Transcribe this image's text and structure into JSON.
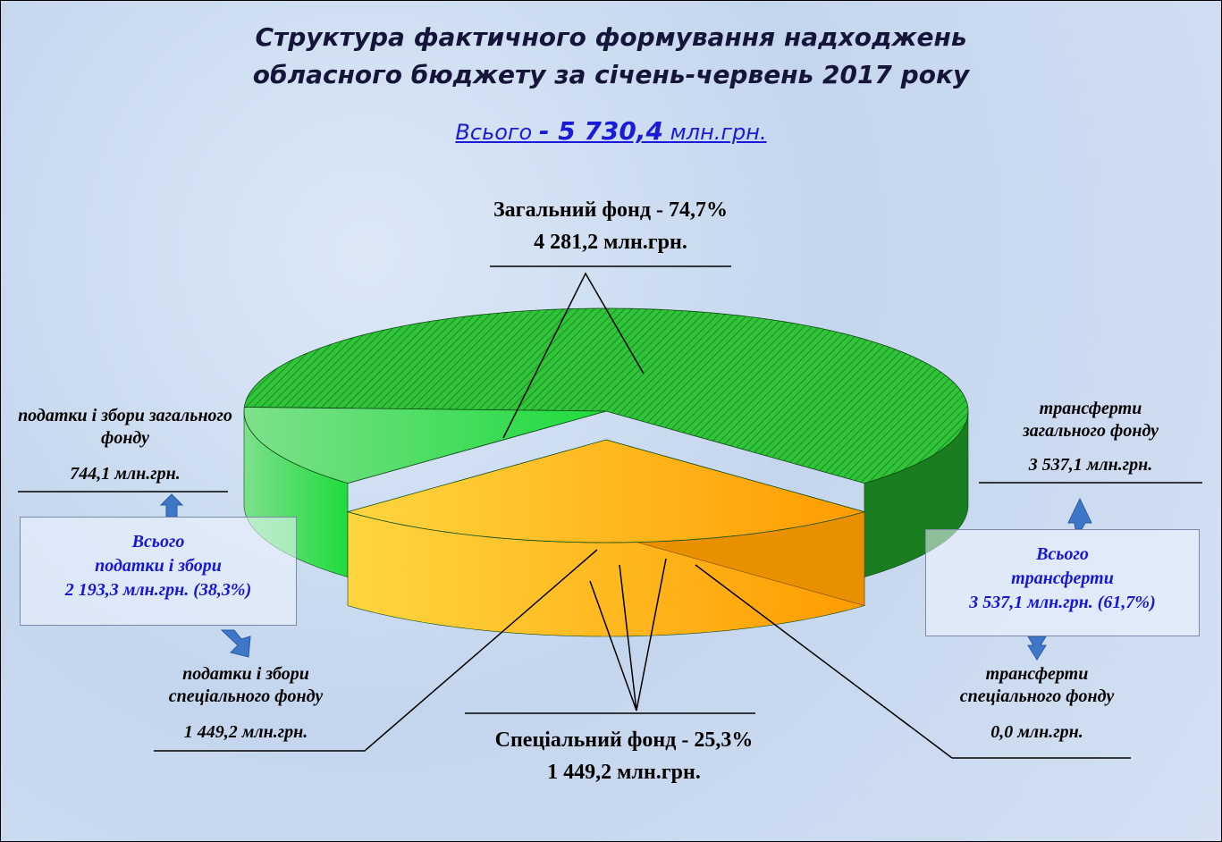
{
  "chart_data": {
    "type": "pie",
    "title": [
      "Структура фактичного формування надходжень",
      "обласного бюджету за січень-червень 2017 року"
    ],
    "total": {
      "text": "Всього",
      "value": 5730.4,
      "value_label": "- 5 730,4",
      "unit": "млн.грн."
    },
    "categories": [
      "податки і збори загального фонду",
      "трансферти загального фонду",
      "податки і збори спеціального фонду",
      "трансферти спеціального фонду"
    ],
    "values": [
      744.1,
      3537.1,
      1449.2,
      0
    ],
    "value_labels": [
      "744,1 млн.грн.",
      "3 537,1 млн.грн.",
      "1 449,2 млн.грн.",
      "0,0  млн.грн."
    ],
    "colors": [
      "#3ed85c",
      "#1f9a26",
      "#ffb200",
      "#1f9a26"
    ],
    "funds": [
      {
        "label": "Загальний фонд - 74,7%",
        "value": 4281.2,
        "value_label": "4 281,2 млн.грн."
      },
      {
        "label": "Спеціальний фонд - 25,3%",
        "value": 1449.2,
        "value_label": "1 449,2 млн.грн."
      }
    ],
    "boxes": [
      {
        "title": "Всього",
        "name": "податки і збори",
        "value": 2193.3,
        "value_label": "2 193,3 млн.грн. (38,3%)"
      },
      {
        "title": "Всього",
        "name": "трансферти",
        "value": 3537.1,
        "value_label": "3 537,1 млн.грн. (61,7%)"
      }
    ]
  }
}
